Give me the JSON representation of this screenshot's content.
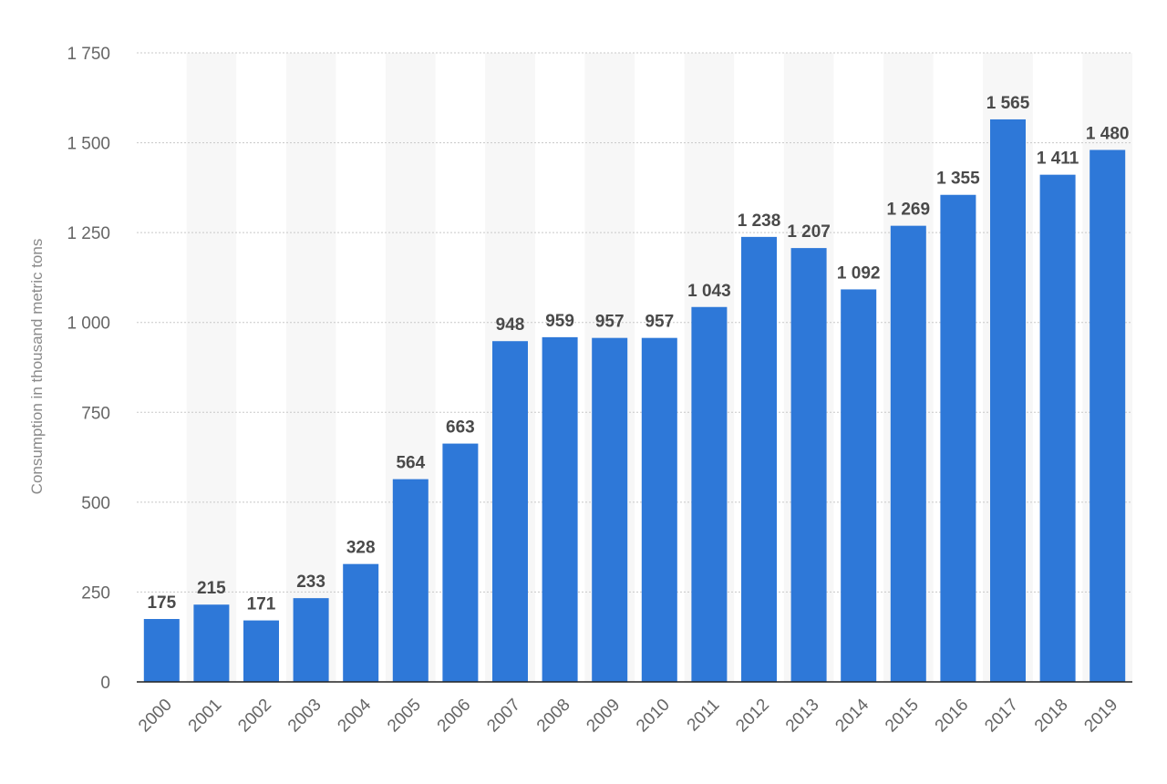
{
  "chart_data": {
    "type": "bar",
    "title": "",
    "xlabel": "",
    "ylabel": "Consumption in thousand metric tons",
    "categories": [
      "2000",
      "2001",
      "2002",
      "2003",
      "2004",
      "2005",
      "2006",
      "2007",
      "2008",
      "2009",
      "2010",
      "2011",
      "2012",
      "2013",
      "2014",
      "2015",
      "2016",
      "2017",
      "2018",
      "2019"
    ],
    "values": [
      175,
      215,
      171,
      233,
      328,
      564,
      663,
      948,
      959,
      957,
      957,
      1043,
      1238,
      1207,
      1092,
      1269,
      1355,
      1565,
      1411,
      1480
    ],
    "value_labels": [
      "175",
      "215",
      "171",
      "233",
      "328",
      "564",
      "663",
      "948",
      "959",
      "957",
      "957",
      "1 043",
      "1 238",
      "1 207",
      "1 092",
      "1 269",
      "1 355",
      "1 565",
      "1 411",
      "1 480"
    ],
    "ylim": [
      0,
      1750
    ],
    "yticks": [
      0,
      250,
      500,
      750,
      1000,
      1250,
      1500,
      1750
    ],
    "ytick_labels": [
      "0",
      "250",
      "500",
      "750",
      "1 000",
      "1 250",
      "1 500",
      "1 750"
    ],
    "grid": true,
    "legend": "none",
    "colors": {
      "bar": "#2e78d8",
      "band": "#f7f7f7"
    }
  }
}
